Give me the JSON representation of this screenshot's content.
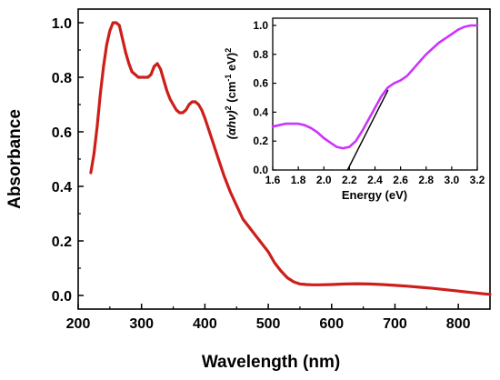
{
  "chart_data": [
    {
      "type": "line",
      "xlabel": "Wavelength (nm)",
      "ylabel": "Absorbance",
      "xlim": [
        200,
        850
      ],
      "ylim": [
        -0.05,
        1.05
      ],
      "xticks": [
        200,
        300,
        400,
        500,
        600,
        700,
        800
      ],
      "yticks": [
        0.0,
        0.2,
        0.4,
        0.6,
        0.8,
        1.0
      ],
      "grid": false,
      "series": [
        {
          "color": "#cc1f1a",
          "x": [
            220,
            225,
            230,
            235,
            240,
            245,
            250,
            255,
            260,
            265,
            270,
            275,
            280,
            285,
            290,
            295,
            300,
            305,
            310,
            315,
            320,
            325,
            330,
            335,
            340,
            345,
            350,
            355,
            360,
            365,
            370,
            375,
            380,
            385,
            390,
            395,
            400,
            410,
            420,
            430,
            440,
            450,
            460,
            470,
            480,
            490,
            500,
            510,
            520,
            530,
            540,
            550,
            560,
            570,
            580,
            600,
            620,
            640,
            660,
            680,
            700,
            720,
            740,
            760,
            780,
            800,
            820,
            840,
            850
          ],
          "y": [
            0.45,
            0.52,
            0.62,
            0.74,
            0.84,
            0.92,
            0.97,
            1.0,
            1.0,
            0.99,
            0.94,
            0.89,
            0.85,
            0.82,
            0.81,
            0.8,
            0.8,
            0.8,
            0.8,
            0.81,
            0.84,
            0.85,
            0.83,
            0.79,
            0.75,
            0.72,
            0.7,
            0.68,
            0.67,
            0.67,
            0.68,
            0.7,
            0.71,
            0.71,
            0.7,
            0.68,
            0.65,
            0.58,
            0.51,
            0.44,
            0.38,
            0.33,
            0.28,
            0.25,
            0.22,
            0.19,
            0.16,
            0.12,
            0.09,
            0.065,
            0.05,
            0.042,
            0.04,
            0.039,
            0.039,
            0.04,
            0.042,
            0.043,
            0.042,
            0.04,
            0.037,
            0.034,
            0.03,
            0.026,
            0.021,
            0.016,
            0.011,
            0.006,
            0.004
          ]
        }
      ]
    },
    {
      "type": "line",
      "xlabel": "Energy (eV)",
      "ylabel": "(αhν)² (cm⁻¹ eV)²",
      "ylabel_parts": {
        "main": "(αhν)",
        "sup1": "2",
        "unit_open": " (cm",
        "sup2": "-1",
        "unit_close": " eV)",
        "sup3": "2"
      },
      "xlim": [
        1.6,
        3.2
      ],
      "ylim": [
        0.0,
        1.05
      ],
      "xticks": [
        "1.6",
        "1.8",
        "2.0",
        "2.2",
        "2.4",
        "2.6",
        "2.8",
        "3.0",
        "3.2"
      ],
      "yticks": [
        "0.0",
        "0.2",
        "0.4",
        "0.6",
        "0.8",
        "1.0"
      ],
      "grid": false,
      "series": [
        {
          "color": "#cc33ff",
          "x": [
            1.6,
            1.65,
            1.7,
            1.75,
            1.8,
            1.85,
            1.9,
            1.95,
            2.0,
            2.05,
            2.1,
            2.15,
            2.2,
            2.25,
            2.3,
            2.35,
            2.4,
            2.45,
            2.5,
            2.55,
            2.6,
            2.65,
            2.7,
            2.75,
            2.8,
            2.85,
            2.9,
            2.95,
            3.0,
            3.05,
            3.1,
            3.15,
            3.2
          ],
          "y": [
            0.3,
            0.31,
            0.32,
            0.32,
            0.32,
            0.31,
            0.29,
            0.26,
            0.22,
            0.19,
            0.16,
            0.15,
            0.16,
            0.2,
            0.27,
            0.35,
            0.43,
            0.51,
            0.57,
            0.6,
            0.62,
            0.65,
            0.7,
            0.75,
            0.8,
            0.84,
            0.88,
            0.91,
            0.94,
            0.97,
            0.99,
            1.0,
            1.0
          ]
        },
        {
          "color": "#000000",
          "x": [
            2.185,
            2.5
          ],
          "y": [
            0.0,
            0.55
          ]
        }
      ]
    }
  ]
}
